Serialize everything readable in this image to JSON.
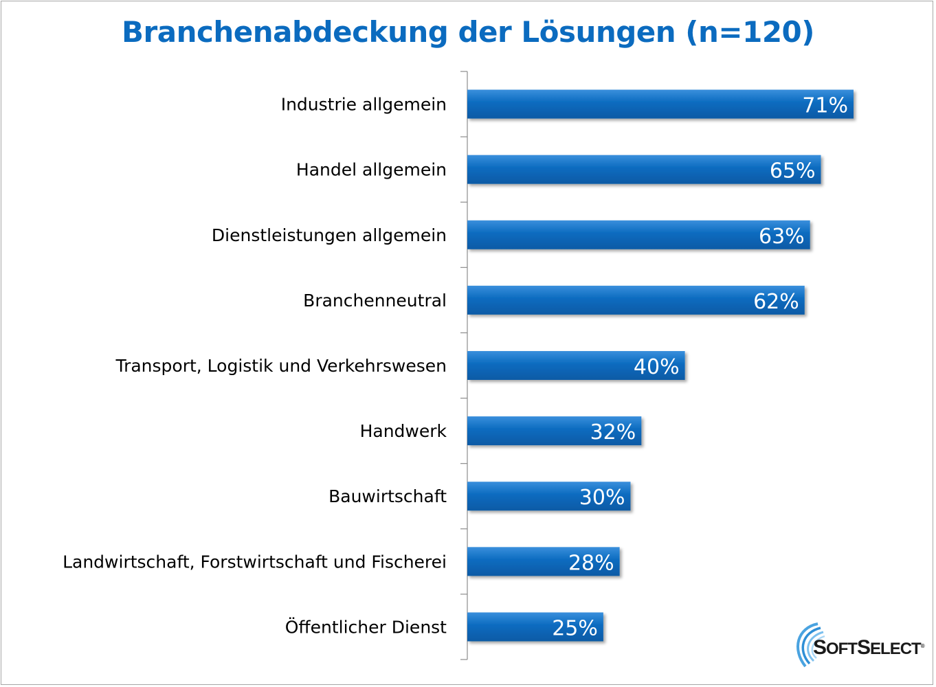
{
  "chart_data": {
    "type": "bar",
    "orientation": "horizontal",
    "title": "Branchenabdeckung der Lösungen (n=120)",
    "categories": [
      "Industrie allgemein",
      "Handel allgemein",
      "Dienstleistungen allgemein",
      "Branchenneutral",
      "Transport, Logistik und Verkehrswesen",
      "Handwerk",
      "Bauwirtschaft",
      "Landwirtschaft, Forstwirtschaft und Fischerei",
      "Öffentlicher Dienst"
    ],
    "values": [
      71,
      65,
      63,
      62,
      40,
      32,
      30,
      28,
      25
    ],
    "value_labels": [
      "71%",
      "65%",
      "63%",
      "62%",
      "40%",
      "32%",
      "30%",
      "28%",
      "25%"
    ],
    "unit": "%",
    "grid": false,
    "legend": "none",
    "colors": {
      "bar": "#0b6bbf",
      "title": "#0b6bbf"
    }
  },
  "logo": {
    "text_first_big": "S",
    "text_first_rest": "OFT",
    "text_second_big": "S",
    "text_second_rest": "ELECT",
    "mark": "®"
  }
}
